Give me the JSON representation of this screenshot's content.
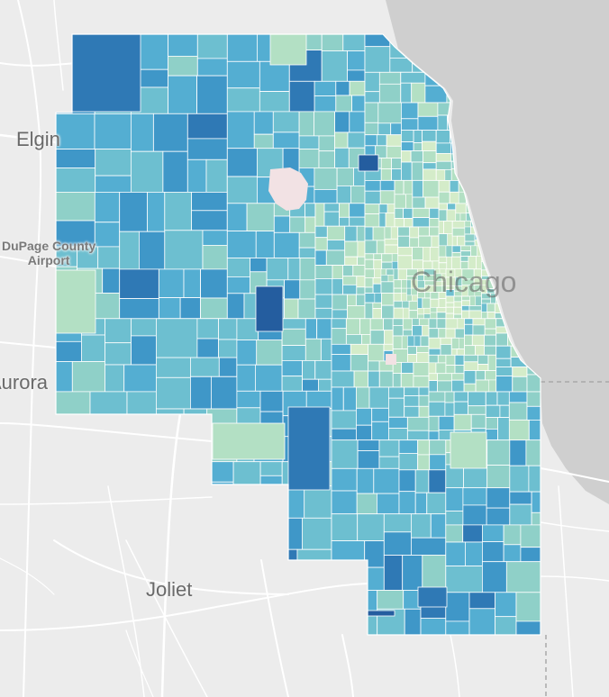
{
  "map": {
    "labels": {
      "elgin": "Elgin",
      "dupage_line1": "DuPage County",
      "dupage_line2": "Airport",
      "chicago": "Chicago",
      "aurora": "Aurora",
      "joliet": "Joliet"
    },
    "palette": [
      "#d4ecc9",
      "#b3e0c4",
      "#8fd0c8",
      "#6dbfd0",
      "#54aed2",
      "#3f97c8",
      "#2f79b5",
      "#245d9f"
    ],
    "colors": {
      "water": "#cfcfcf",
      "land": "#ececec",
      "road": "#ffffff",
      "tract_border": "#ffffff",
      "missing_tract": "#f2e2e4"
    }
  }
}
